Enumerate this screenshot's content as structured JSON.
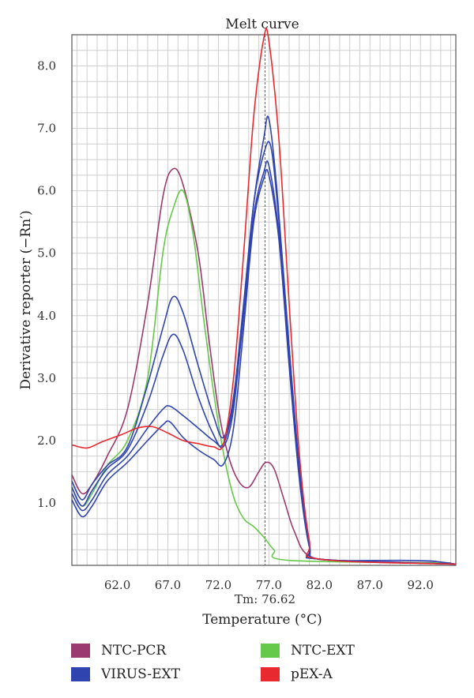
{
  "chart_data": {
    "type": "line",
    "title": "Melt curve",
    "xlabel": "Temperature (°C)",
    "ylabel": "Derivative reporter (−Rn′)",
    "xlim": [
      57.5,
      95.5
    ],
    "ylim": [
      0.0,
      8.5
    ],
    "x_ticks": [
      62.0,
      67.0,
      72.0,
      77.0,
      82.0,
      87.0,
      92.0
    ],
    "y_ticks": [
      1.0,
      2.0,
      3.0,
      4.0,
      5.0,
      6.0,
      7.0,
      8.0
    ],
    "grid": true,
    "annotation": {
      "label": "Tm: 76.62",
      "x": 76.62
    },
    "legend": [
      {
        "name": "NTC-PCR",
        "color": "#9b3a6f"
      },
      {
        "name": "NTC-EXT",
        "color": "#66c94a"
      },
      {
        "name": "VIRUS-EXT",
        "color": "#3044b0"
      },
      {
        "name": "pEX-A",
        "color": "#e8292f"
      }
    ],
    "series": [
      {
        "name": "NTC-PCR",
        "color": "#9b3a6f",
        "points": [
          [
            57.5,
            1.45
          ],
          [
            58.5,
            1.15
          ],
          [
            59.5,
            1.3
          ],
          [
            61.0,
            1.75
          ],
          [
            63.0,
            2.5
          ],
          [
            65.0,
            4.2
          ],
          [
            66.5,
            5.9
          ],
          [
            67.5,
            6.35
          ],
          [
            68.5,
            6.1
          ],
          [
            70.0,
            5.0
          ],
          [
            71.0,
            3.7
          ],
          [
            72.0,
            2.5
          ],
          [
            73.0,
            1.75
          ],
          [
            74.0,
            1.35
          ],
          [
            75.0,
            1.25
          ],
          [
            76.0,
            1.5
          ],
          [
            76.7,
            1.65
          ],
          [
            77.5,
            1.55
          ],
          [
            78.5,
            1.05
          ],
          [
            79.5,
            0.55
          ],
          [
            81.0,
            0.15
          ],
          [
            85.0,
            0.07
          ],
          [
            95.0,
            0.04
          ]
        ]
      },
      {
        "name": "NTC-EXT",
        "color": "#66c94a",
        "points": [
          [
            57.5,
            1.25
          ],
          [
            58.5,
            0.95
          ],
          [
            59.5,
            1.15
          ],
          [
            61.0,
            1.6
          ],
          [
            63.0,
            2.0
          ],
          [
            65.0,
            3.0
          ],
          [
            66.5,
            5.0
          ],
          [
            67.5,
            5.7
          ],
          [
            68.5,
            6.0
          ],
          [
            69.5,
            5.3
          ],
          [
            70.5,
            4.0
          ],
          [
            71.5,
            2.8
          ],
          [
            72.5,
            1.8
          ],
          [
            73.5,
            1.1
          ],
          [
            74.5,
            0.75
          ],
          [
            75.5,
            0.62
          ],
          [
            76.5,
            0.45
          ],
          [
            77.5,
            0.25
          ],
          [
            79.0,
            0.08
          ],
          [
            95.0,
            0.04
          ]
        ]
      },
      {
        "name": "VIRUS-EXT",
        "color": "#3044b0",
        "points": [
          [
            57.5,
            1.35
          ],
          [
            58.5,
            1.05
          ],
          [
            59.5,
            1.3
          ],
          [
            61.0,
            1.6
          ],
          [
            63.0,
            1.9
          ],
          [
            65.0,
            2.9
          ],
          [
            66.5,
            3.8
          ],
          [
            67.5,
            4.3
          ],
          [
            68.5,
            4.05
          ],
          [
            70.0,
            3.2
          ],
          [
            71.5,
            2.4
          ],
          [
            72.5,
            2.05
          ],
          [
            73.5,
            2.7
          ],
          [
            74.5,
            4.2
          ],
          [
            75.5,
            5.8
          ],
          [
            76.5,
            6.6
          ],
          [
            77.2,
            6.7
          ],
          [
            78.0,
            5.5
          ],
          [
            79.0,
            3.5
          ],
          [
            80.0,
            1.6
          ],
          [
            81.0,
            0.35
          ],
          [
            82.0,
            0.1
          ],
          [
            90.0,
            0.08
          ],
          [
            93.0,
            0.07
          ],
          [
            95.5,
            0.02
          ]
        ]
      },
      {
        "name": "VIRUS-EXT",
        "color": "#3044b0",
        "points": [
          [
            57.5,
            1.25
          ],
          [
            58.5,
            0.95
          ],
          [
            59.5,
            1.2
          ],
          [
            61.0,
            1.55
          ],
          [
            63.0,
            1.85
          ],
          [
            65.0,
            2.6
          ],
          [
            66.5,
            3.35
          ],
          [
            67.5,
            3.7
          ],
          [
            68.5,
            3.45
          ],
          [
            70.0,
            2.7
          ],
          [
            71.5,
            2.1
          ],
          [
            72.5,
            1.9
          ],
          [
            73.5,
            2.5
          ],
          [
            74.5,
            4.1
          ],
          [
            75.5,
            5.8
          ],
          [
            76.5,
            6.85
          ],
          [
            77.0,
            7.15
          ],
          [
            77.8,
            6.0
          ],
          [
            79.0,
            3.5
          ],
          [
            80.0,
            1.5
          ],
          [
            81.0,
            0.3
          ],
          [
            82.0,
            0.1
          ],
          [
            95.5,
            0.02
          ]
        ]
      },
      {
        "name": "VIRUS-EXT",
        "color": "#3044b0",
        "points": [
          [
            57.5,
            1.15
          ],
          [
            58.5,
            0.88
          ],
          [
            59.5,
            1.05
          ],
          [
            61.0,
            1.45
          ],
          [
            63.0,
            1.75
          ],
          [
            65.0,
            2.2
          ],
          [
            66.5,
            2.5
          ],
          [
            67.2,
            2.55
          ],
          [
            68.5,
            2.4
          ],
          [
            70.0,
            2.2
          ],
          [
            71.5,
            2.0
          ],
          [
            72.5,
            1.95
          ],
          [
            73.5,
            2.6
          ],
          [
            74.5,
            4.0
          ],
          [
            75.5,
            5.6
          ],
          [
            76.5,
            6.3
          ],
          [
            77.0,
            6.4
          ],
          [
            78.0,
            5.3
          ],
          [
            79.0,
            3.3
          ],
          [
            80.0,
            1.5
          ],
          [
            81.0,
            0.3
          ],
          [
            82.0,
            0.1
          ],
          [
            95.5,
            0.02
          ]
        ]
      },
      {
        "name": "VIRUS-EXT",
        "color": "#3044b0",
        "points": [
          [
            57.5,
            1.05
          ],
          [
            58.5,
            0.78
          ],
          [
            59.5,
            0.95
          ],
          [
            61.0,
            1.35
          ],
          [
            63.0,
            1.65
          ],
          [
            65.0,
            2.0
          ],
          [
            66.5,
            2.25
          ],
          [
            67.2,
            2.3
          ],
          [
            68.5,
            2.05
          ],
          [
            70.0,
            1.85
          ],
          [
            71.5,
            1.7
          ],
          [
            72.5,
            1.62
          ],
          [
            73.5,
            2.2
          ],
          [
            74.5,
            3.8
          ],
          [
            75.5,
            5.5
          ],
          [
            76.5,
            6.2
          ],
          [
            77.0,
            6.25
          ],
          [
            78.0,
            5.2
          ],
          [
            79.0,
            3.2
          ],
          [
            80.0,
            1.4
          ],
          [
            81.0,
            0.3
          ],
          [
            82.0,
            0.1
          ],
          [
            95.5,
            0.02
          ]
        ]
      },
      {
        "name": "pEX-A",
        "color": "#e8292f",
        "points": [
          [
            57.5,
            1.93
          ],
          [
            59.0,
            1.88
          ],
          [
            60.5,
            1.98
          ],
          [
            62.5,
            2.1
          ],
          [
            64.0,
            2.2
          ],
          [
            65.5,
            2.22
          ],
          [
            67.0,
            2.12
          ],
          [
            68.5,
            2.0
          ],
          [
            70.0,
            1.95
          ],
          [
            71.5,
            1.9
          ],
          [
            72.5,
            1.95
          ],
          [
            73.5,
            3.0
          ],
          [
            74.5,
            5.0
          ],
          [
            75.5,
            7.2
          ],
          [
            76.5,
            8.45
          ],
          [
            77.0,
            8.4
          ],
          [
            78.0,
            6.8
          ],
          [
            79.0,
            4.2
          ],
          [
            80.0,
            1.8
          ],
          [
            81.0,
            0.4
          ],
          [
            82.0,
            0.1
          ],
          [
            95.5,
            0.02
          ]
        ]
      }
    ]
  }
}
